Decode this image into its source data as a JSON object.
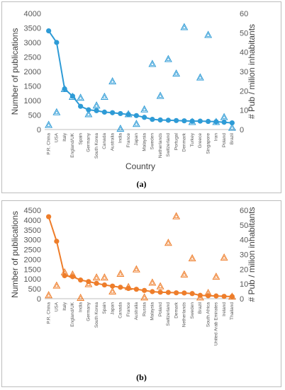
{
  "chart_data": [
    {
      "type": "line",
      "panel_label": "(a)",
      "categories": [
        "P.R. China",
        "USA",
        "Italy",
        "England/UK",
        "Spain",
        "Germany",
        "South Korea",
        "Canada",
        "Australia",
        "India",
        "France",
        "Japan",
        "Malaysia",
        "Sweden",
        "Netherlands",
        "Switzerland",
        "Portugal",
        "Denmark",
        "Turkey",
        "Greece",
        "Singapore",
        "Iran",
        "Poland",
        "Brazil"
      ],
      "xlabel": "Country",
      "ylabel": "Number of publications",
      "y2label": "# Pub / milion inhabitants",
      "ylim": [
        0,
        4000
      ],
      "yticks": [
        0,
        500,
        1000,
        1500,
        2000,
        2500,
        3000,
        3500,
        4000
      ],
      "y2lim": [
        0,
        60
      ],
      "y2ticks": [
        0,
        10,
        20,
        30,
        40,
        50,
        60
      ],
      "grid": false,
      "color": "#2e9bd6",
      "series": [
        {
          "axis": "left",
          "marker": "circle",
          "values": [
            3400,
            3000,
            1400,
            1150,
            800,
            680,
            650,
            600,
            580,
            550,
            520,
            480,
            420,
            350,
            330,
            320,
            310,
            300,
            290,
            290,
            280,
            270,
            250,
            230
          ]
        },
        {
          "axis": "right",
          "marker": "triangle",
          "values": [
            2.5,
            9,
            21,
            17,
            16.5,
            8,
            12.5,
            17,
            25,
            0.5,
            8,
            3,
            10.5,
            34,
            17.5,
            36.5,
            29,
            53,
            4,
            27,
            49,
            4,
            6.5,
            1
          ]
        }
      ]
    },
    {
      "type": "line",
      "panel_label": "(b)",
      "categories": [
        "P.R. China",
        "USA",
        "Italy",
        "England/UK",
        "India",
        "Germany",
        "South Korea",
        "Spain",
        "Japan",
        "Canada",
        "France",
        "Australia",
        "Russia",
        "Malaysia",
        "Poland",
        "Switzerland",
        "Demark",
        "Netherlands",
        "Sweden",
        "Brazil",
        "South Africa",
        "United Arab Emirates",
        "Ireland",
        "Thailand"
      ],
      "xlabel": "",
      "ylabel": "Number of publications",
      "y2label": "# Pub / milion inhabitants",
      "ylim": [
        0,
        4500
      ],
      "yticks": [
        0,
        500,
        1000,
        1500,
        2000,
        2500,
        3000,
        3500,
        4000,
        4500
      ],
      "y2lim": [
        0,
        60
      ],
      "y2ticks": [
        0,
        10,
        20,
        30,
        40,
        50,
        60
      ],
      "grid": false,
      "color": "#ee7d2a",
      "series": [
        {
          "axis": "left",
          "marker": "circle",
          "values": [
            4170,
            2920,
            1170,
            1120,
            950,
            870,
            780,
            700,
            640,
            580,
            520,
            480,
            420,
            360,
            330,
            320,
            300,
            290,
            260,
            170,
            150,
            140,
            120,
            110
          ]
        },
        {
          "axis": "right",
          "marker": "triangle",
          "values": [
            2.5,
            9,
            18,
            16.5,
            0.7,
            10,
            14.5,
            14.5,
            5,
            17,
            8,
            20,
            1,
            11,
            8.5,
            38,
            56,
            16.5,
            27.5,
            1,
            4,
            15,
            28,
            1.5
          ]
        }
      ]
    }
  ]
}
